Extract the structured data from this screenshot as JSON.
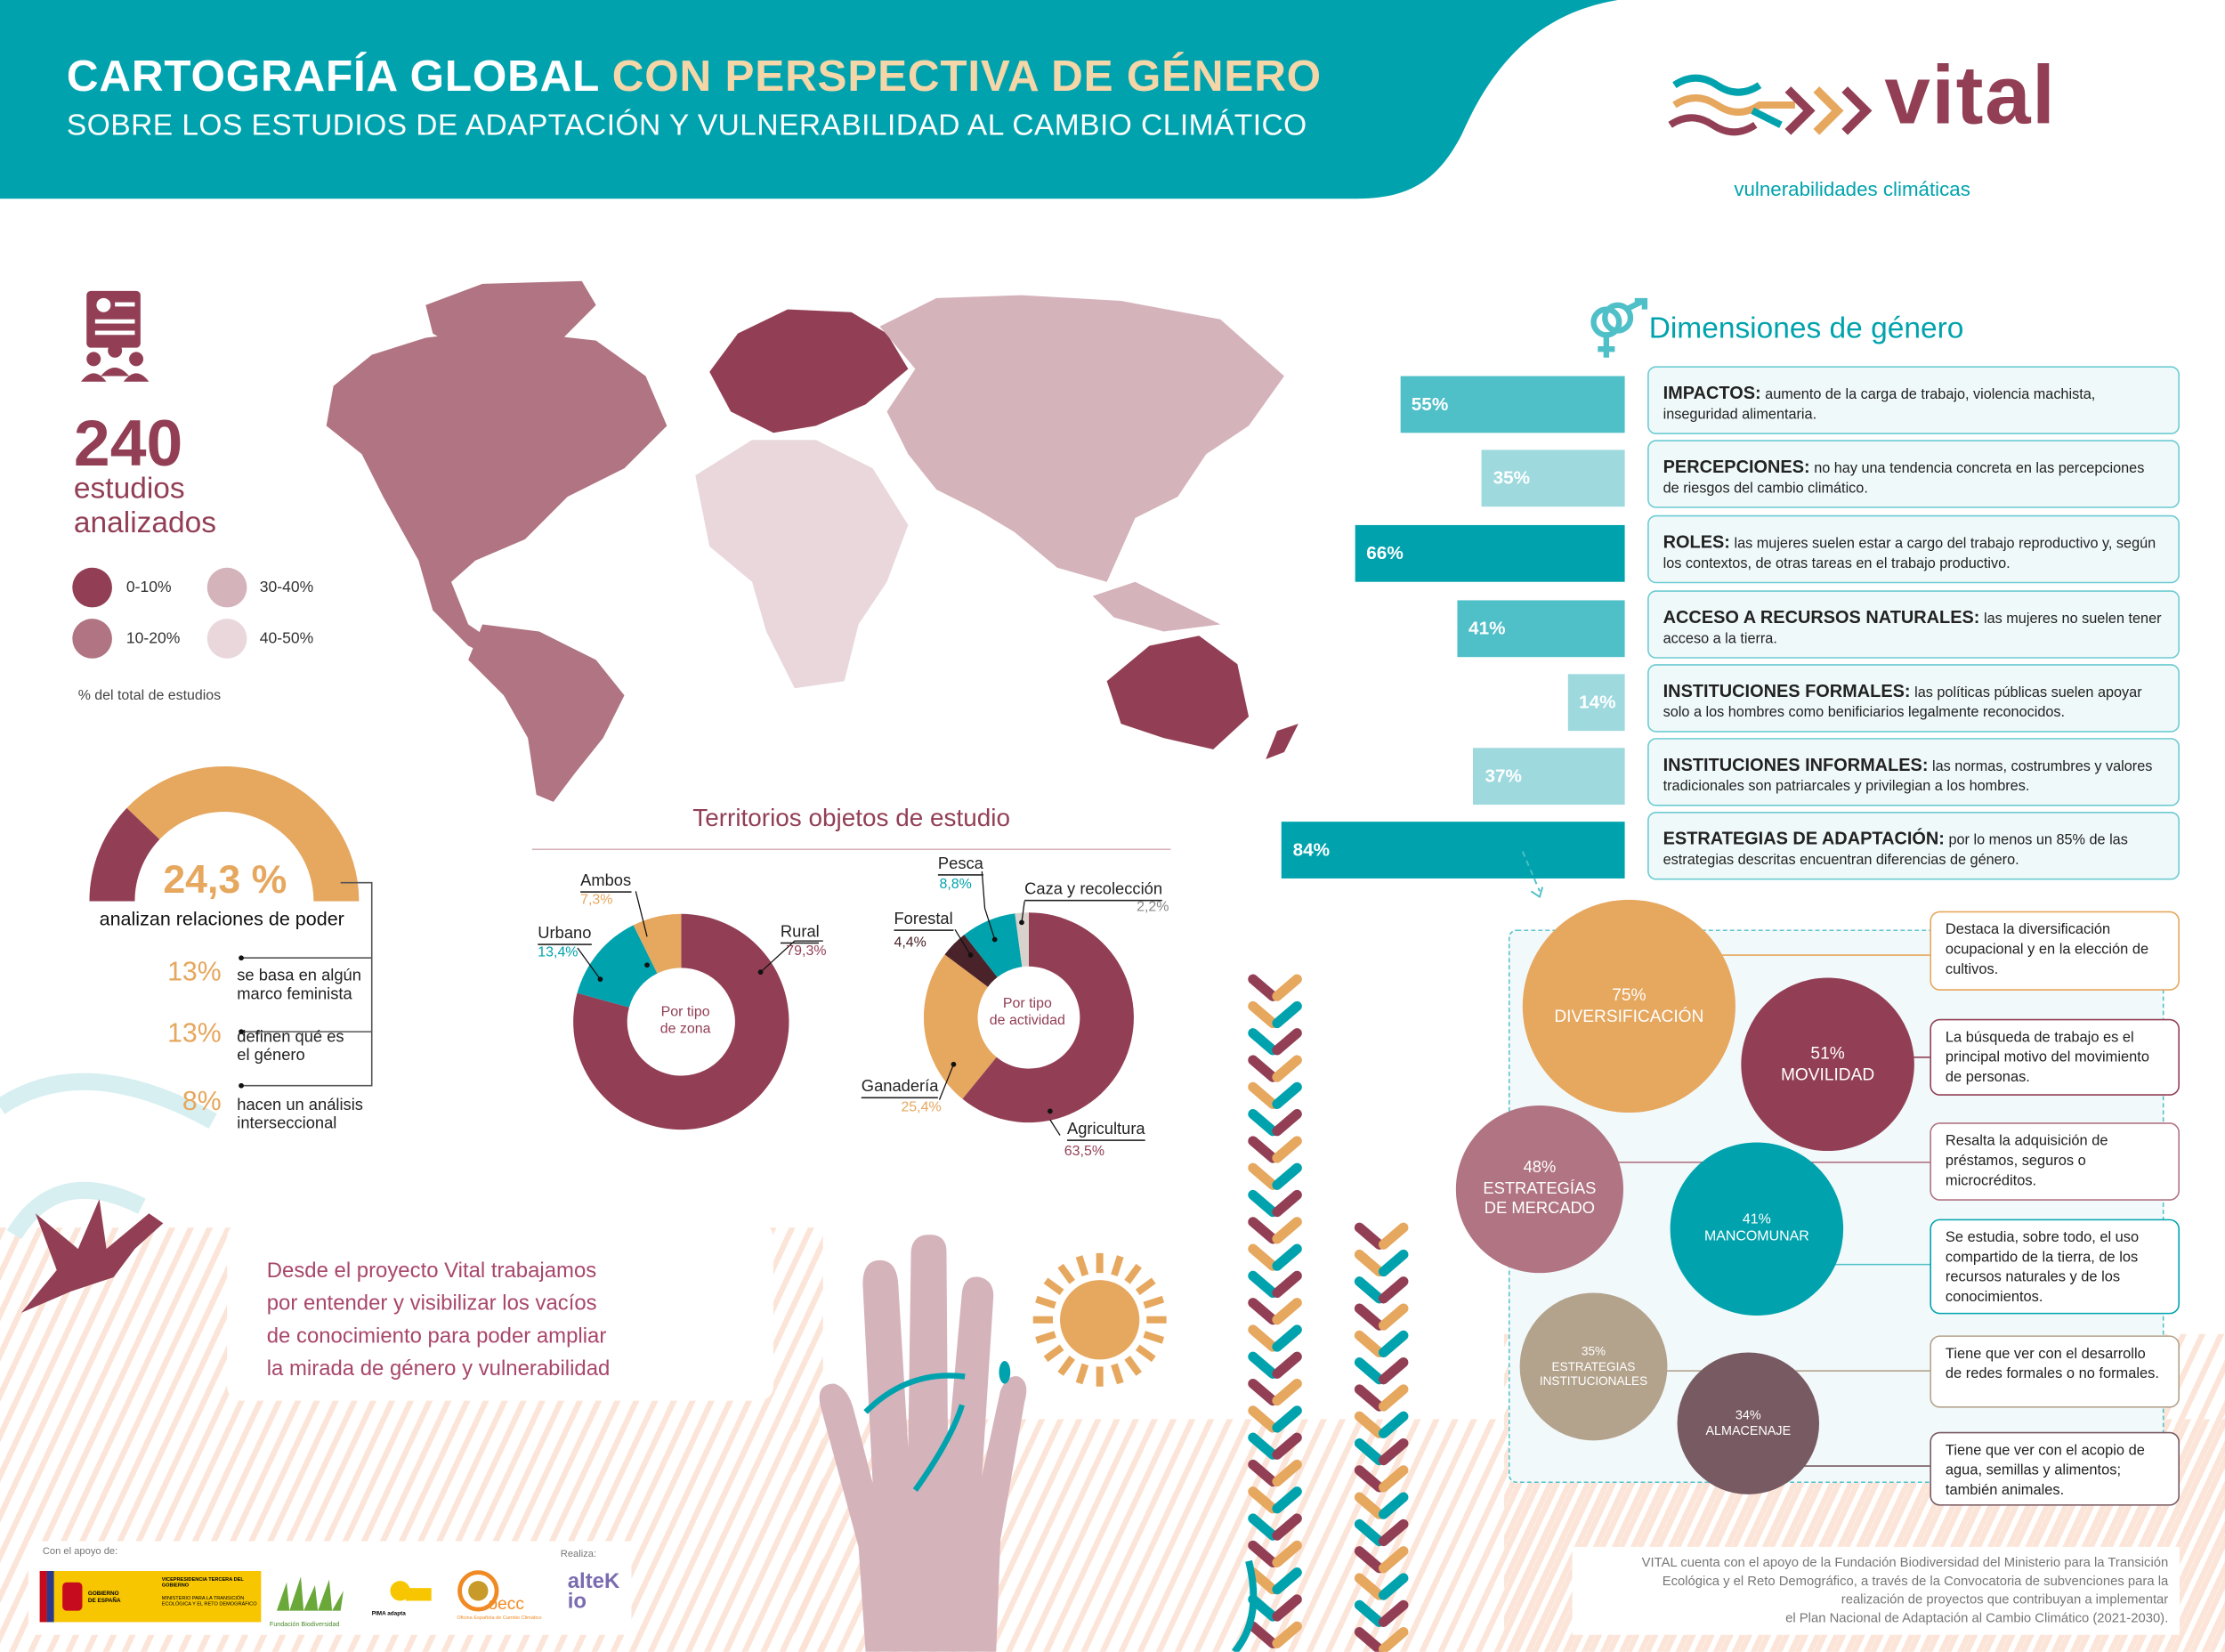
{
  "header": {
    "title_part1": "CARTOGRAFÍA GLOBAL",
    "title_part2": "CON PERSPECTIVA DE GÉNERO",
    "subtitle": "SOBRE LOS ESTUDIOS DE ADAPTACIÓN Y VULNERABILIDAD AL CAMBIO CLIMÁTICO"
  },
  "logo": {
    "name": "vital",
    "tagline": "vulnerabilidades climáticas"
  },
  "studies": {
    "count": "240",
    "label_line1": "estudios",
    "label_line2": "analizados",
    "legend": [
      {
        "label": "0-10%",
        "color": "#923f55"
      },
      {
        "label": "10-20%",
        "color": "#b07482"
      },
      {
        "label": "30-40%",
        "color": "#d5b3bb"
      },
      {
        "label": "40-50%",
        "color": "#e9d7dc"
      }
    ],
    "note": "% del total de estudios"
  },
  "power": {
    "value_label": "24,3 %",
    "fraction": 0.243,
    "caption": "analizan relaciones de poder",
    "items": [
      {
        "pct": "13%",
        "line1": "se basa en algún",
        "line2": "marco feminista"
      },
      {
        "pct": "13%",
        "line1": "definen qué es",
        "line2": "el género"
      },
      {
        "pct": "8%",
        "line1": "hacen un análisis",
        "line2": "interseccional"
      }
    ]
  },
  "message": {
    "lines": [
      "Desde el proyecto Vital trabajamos",
      "por entender y visibilizar los vacíos",
      "de conocimiento para poder ampliar",
      "la mirada de género y vulnerabilidad"
    ]
  },
  "chart_data": [
    {
      "type": "pie",
      "title": "Territorios objetos de estudio",
      "center_label_line1": "Por tipo",
      "center_label_line2": "de zona",
      "slices": [
        {
          "label": "Rural",
          "value": 79.3,
          "value_label": "79,3%",
          "color": "#923f55"
        },
        {
          "label": "Urbano",
          "value": 13.4,
          "value_label": "13,4%",
          "color": "#00a3ad"
        },
        {
          "label": "Ambos",
          "value": 7.3,
          "value_label": "7,3%",
          "color": "#e6a75e"
        }
      ]
    },
    {
      "type": "pie",
      "center_label_line1": "Por tipo",
      "center_label_line2": "de actividad",
      "slices": [
        {
          "label": "Agricultura",
          "value": 63.5,
          "value_label": "63,5%",
          "color": "#923f55"
        },
        {
          "label": "Ganadería",
          "value": 25.4,
          "value_label": "25,4%",
          "color": "#e6a75e"
        },
        {
          "label": "Forestal",
          "value": 4.4,
          "value_label": "4,4%",
          "color": "#4a2229"
        },
        {
          "label": "Pesca",
          "value": 8.8,
          "value_label": "8,8%",
          "color": "#00a3ad"
        },
        {
          "label": "Caza y recolección",
          "value": 2.2,
          "value_label": "2,2%",
          "color": "#d9d2cc"
        }
      ]
    },
    {
      "type": "bar",
      "title": "Dimensiones de género",
      "categories": [
        "IMPACTOS",
        "PERCEPCIONES",
        "ROLES",
        "ACCESO A RECURSOS NATURALES",
        "INSTITUCIONES FORMALES",
        "INSTITUCIONES INFORMALES",
        "ESTRATEGIAS DE ADAPTACIÓN"
      ],
      "values": [
        55,
        35,
        66,
        41,
        14,
        37,
        84
      ],
      "ylim": [
        0,
        100
      ]
    }
  ],
  "dimensiones": {
    "title": "Dimensiones de género",
    "items": [
      {
        "pct": "55%",
        "value": 55,
        "color": "#4fbfc8",
        "title": "IMPACTOS:",
        "text": "aumento de la carga de trabajo, violencia machista, inseguridad alimentaria."
      },
      {
        "pct": "35%",
        "value": 35,
        "color": "#9ed9de",
        "title": "PERCEPCIONES:",
        "text": "no hay una tendencia concreta en las percepciones de riesgos del cambio climático."
      },
      {
        "pct": "66%",
        "value": 66,
        "color": "#00a3ad",
        "title": "ROLES:",
        "text": "las mujeres suelen estar a cargo del trabajo reproductivo y, según los contextos, de otras tareas en el trabajo productivo."
      },
      {
        "pct": "41%",
        "value": 41,
        "color": "#4fbfc8",
        "title": "ACCESO A RECURSOS NATURALES:",
        "text": "las mujeres no suelen tener acceso a la tierra."
      },
      {
        "pct": "14%",
        "value": 14,
        "color": "#9ed9de",
        "title": "INSTITUCIONES FORMALES:",
        "text": "las políticas públicas suelen apoyar solo a los hombres como benificiarios legalmente reconocidos."
      },
      {
        "pct": "37%",
        "value": 37,
        "color": "#9ed9de",
        "title": "INSTITUCIONES INFORMALES:",
        "text": "las normas, costrumbres y valores tradicionales son patriarcales y privilegian a los hombres."
      },
      {
        "pct": "84%",
        "value": 84,
        "color": "#00a3ad",
        "title": "ESTRATEGIAS DE ADAPTACIÓN:",
        "text": "por lo menos un 85% de las estrategias descritas encuentran diferencias de género."
      }
    ]
  },
  "strategies": [
    {
      "pct": "75%",
      "line1": "DIVERSIFICACIÓN",
      "line2": "",
      "color": "#e6a75e",
      "note": "Destaca la diversificación ocupacional y en la elección de cultivos."
    },
    {
      "pct": "51%",
      "line1": "MOVILIDAD",
      "line2": "",
      "color": "#923f55",
      "note": "La búsqueda de trabajo es el principal motivo del movimiento de personas."
    },
    {
      "pct": "48%",
      "line1": "ESTRATEGÍAS",
      "line2": "DE MERCADO",
      "color": "#b07482",
      "note": "Resalta la adquisición de préstamos, seguros o microcréditos."
    },
    {
      "pct": "41%",
      "line1": "MANCOMUNAR",
      "line2": "",
      "color": "#00a3ad",
      "note": "Se estudia, sobre todo, el uso compartido de la tierra, de los recursos naturales y de los conocimientos."
    },
    {
      "pct": "35%",
      "line1": "ESTRATEGIAS",
      "line2": "INSTITUCIONALES",
      "color": "#b4a38c",
      "note": "Tiene que ver con el desarrollo de redes formales o no formales."
    },
    {
      "pct": "34%",
      "line1": "ALMACENAJE",
      "line2": "",
      "color": "#785a62",
      "note": "Tiene que ver con el acopio de agua, semillas y alimentos; también animales."
    }
  ],
  "footer": {
    "support_label": "Con el apoyo de:",
    "made_by_label": "Realiza:",
    "logos": {
      "gobierno": "GOBIERNO DE ESPAÑA",
      "vicepresidencia": "VICEPRESIDENCIA TERCERA DEL GOBIERNO",
      "ministerio": "MINISTERIO PARA LA TRANSICIÓN ECOLÓGICA Y EL RETO DEMOGRÁFICO",
      "fundacion": "Fundación Biodiversidad",
      "pima": "PIMA adapta",
      "oecc": "oecc",
      "oecc_full": "Oficina Española de Cambio Climático",
      "altekio": "alteKio"
    },
    "note_lines": [
      "VITAL cuenta con el apoyo de la Fundación Biodiversidad del Ministerio para la Transición",
      "Ecológica y el Reto Demográfico, a través de la Convocatoria de subvenciones para la",
      "realización de proyectos que contribuyan a implementar",
      "el Plan Nacional de Adaptación al Cambio Climático (2021-2030)."
    ]
  }
}
